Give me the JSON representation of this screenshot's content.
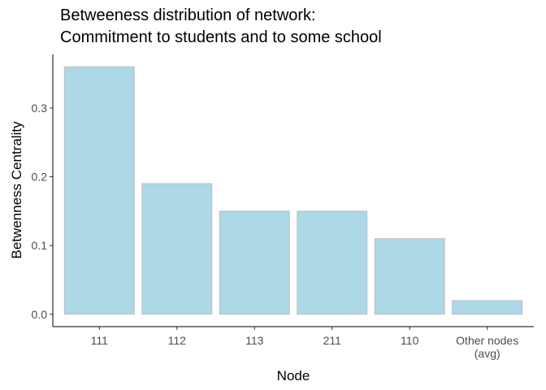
{
  "chart_data": {
    "type": "bar",
    "title_lines": [
      "Betweeness distribution of network:",
      "Commitment to students and to some school"
    ],
    "xlabel": "Node",
    "ylabel": "Betwenness Centrality",
    "categories": [
      [
        "111"
      ],
      [
        "112"
      ],
      [
        "113"
      ],
      [
        "211"
      ],
      [
        "110"
      ],
      [
        "Other nodes",
        "(avg)"
      ]
    ],
    "values": [
      0.36,
      0.19,
      0.15,
      0.15,
      0.11,
      0.02
    ],
    "ylim": [
      -0.018,
      0.378
    ],
    "yticks": [
      0.0,
      0.1,
      0.2,
      0.3
    ],
    "ytick_labels": [
      "0.0",
      "0.1",
      "0.2",
      "0.3"
    ],
    "grid": false,
    "legend": "none",
    "bar_fill": "#add8e6",
    "bar_stroke": "#b8bec2"
  }
}
